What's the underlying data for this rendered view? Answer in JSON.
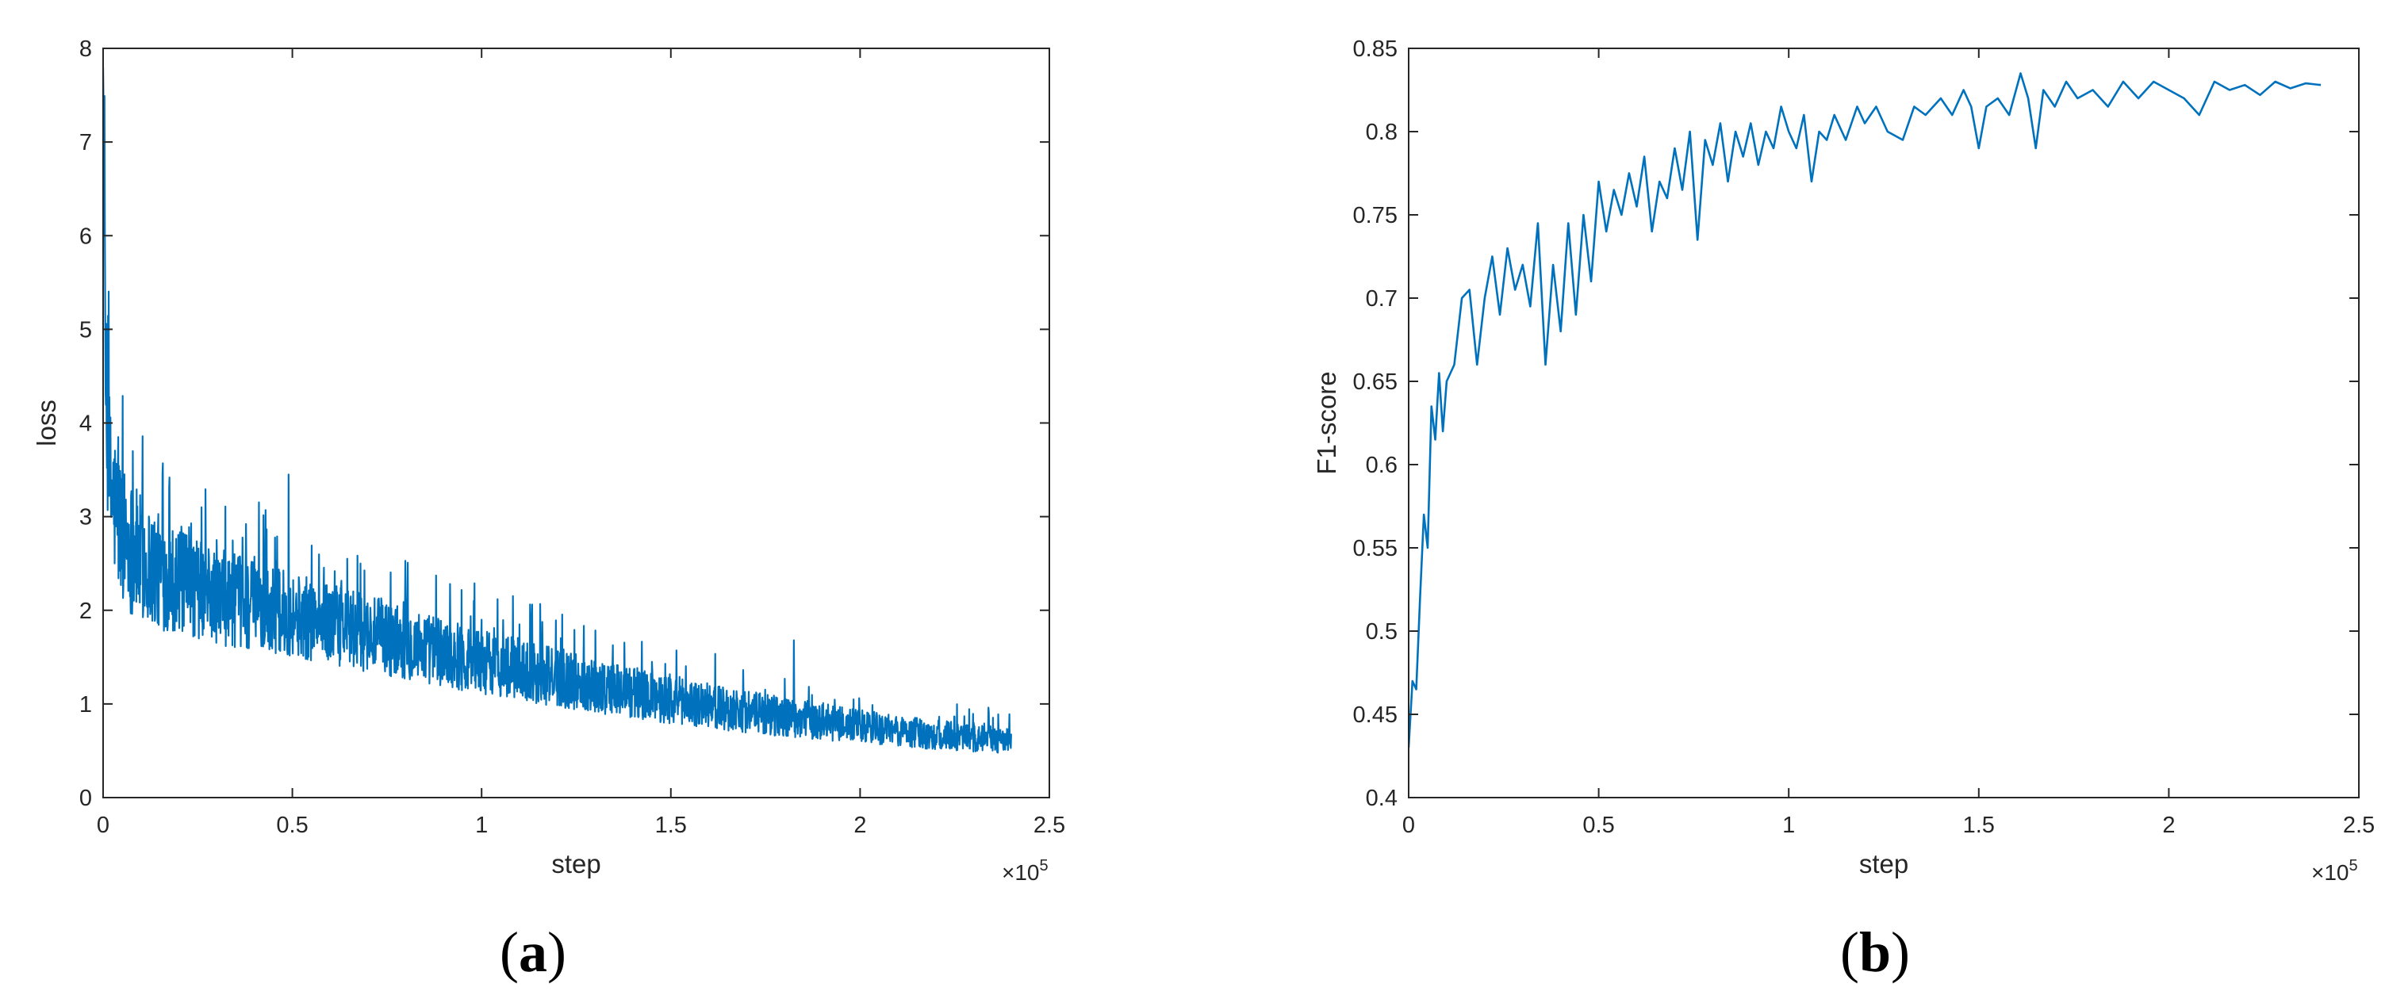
{
  "colors": {
    "line": "#0072BD",
    "axis": "#262626"
  },
  "chart_data": [
    {
      "type": "line",
      "panel_label": "a",
      "xlabel": "step",
      "ylabel": "loss",
      "x_exponent": "10",
      "x_exponent_power": "5",
      "xlim": [
        0,
        2.5
      ],
      "ylim": [
        0,
        8
      ],
      "xticks": [
        0,
        0.5,
        1,
        1.5,
        2,
        2.5
      ],
      "xtick_labels": [
        "0",
        "0.5",
        "1",
        "1.5",
        "2",
        "2.5"
      ],
      "yticks": [
        0,
        1,
        2,
        3,
        4,
        5,
        6,
        7,
        8
      ],
      "ytick_labels": [
        "0",
        "1",
        "2",
        "3",
        "4",
        "5",
        "6",
        "7",
        "8"
      ],
      "grid": false,
      "series": [
        {
          "x_range": [
            0,
            2.4
          ],
          "points": [
            [
              0.0,
              7.8
            ],
            [
              0.003,
              6.0
            ],
            [
              0.006,
              4.6
            ],
            [
              0.01,
              3.9
            ],
            [
              0.02,
              3.3
            ],
            [
              0.04,
              2.95
            ],
            [
              0.07,
              2.7
            ],
            [
              0.1,
              2.55
            ],
            [
              0.15,
              2.4
            ],
            [
              0.2,
              2.3
            ],
            [
              0.3,
              2.15
            ],
            [
              0.4,
              2.05
            ],
            [
              0.5,
              1.95
            ],
            [
              0.6,
              1.85
            ],
            [
              0.7,
              1.75
            ],
            [
              0.8,
              1.65
            ],
            [
              0.9,
              1.55
            ],
            [
              1.0,
              1.45
            ],
            [
              1.1,
              1.37
            ],
            [
              1.2,
              1.28
            ],
            [
              1.3,
              1.2
            ],
            [
              1.4,
              1.12
            ],
            [
              1.5,
              1.05
            ],
            [
              1.6,
              0.98
            ],
            [
              1.7,
              0.92
            ],
            [
              1.8,
              0.86
            ],
            [
              1.9,
              0.81
            ],
            [
              2.0,
              0.76
            ],
            [
              2.1,
              0.71
            ],
            [
              2.2,
              0.67
            ],
            [
              2.3,
              0.63
            ],
            [
              2.4,
              0.6
            ]
          ],
          "band_halfwidth": [
            [
              0.0,
              0.9
            ],
            [
              0.05,
              0.75
            ],
            [
              0.2,
              0.55
            ],
            [
              0.5,
              0.45
            ],
            [
              1.0,
              0.35
            ],
            [
              1.5,
              0.26
            ],
            [
              2.0,
              0.18
            ],
            [
              2.4,
              0.14
            ]
          ],
          "spikes": [
            [
              0.49,
              3.45
            ],
            [
              0.26,
              3.1
            ],
            [
              0.645,
              2.55
            ],
            [
              0.68,
              2.5
            ],
            [
              0.3,
              2.75
            ],
            [
              1.0,
              1.9
            ],
            [
              1.1,
              1.85
            ],
            [
              1.45,
              1.45
            ],
            [
              1.825,
              1.68
            ],
            [
              2.3,
              0.8
            ],
            [
              0.04,
              3.85
            ]
          ]
        }
      ]
    },
    {
      "type": "line",
      "panel_label": "b",
      "xlabel": "step",
      "ylabel": "F1-score",
      "x_exponent": "10",
      "x_exponent_power": "5",
      "xlim": [
        0,
        2.5
      ],
      "ylim": [
        0.4,
        0.85
      ],
      "xticks": [
        0,
        0.5,
        1,
        1.5,
        2,
        2.5
      ],
      "xtick_labels": [
        "0",
        "0.5",
        "1",
        "1.5",
        "2",
        "2.5"
      ],
      "yticks": [
        0.4,
        0.45,
        0.5,
        0.55,
        0.6,
        0.65,
        0.7,
        0.75,
        0.8,
        0.85
      ],
      "ytick_labels": [
        "0.4",
        "0.45",
        "0.5",
        "0.55",
        "0.6",
        "0.65",
        "0.7",
        "0.75",
        "0.8",
        "0.85"
      ],
      "grid": false,
      "series": [
        {
          "x_range": [
            0,
            2.4
          ],
          "points": [
            [
              0.0,
              0.43
            ],
            [
              0.01,
              0.47
            ],
            [
              0.02,
              0.465
            ],
            [
              0.03,
              0.52
            ],
            [
              0.04,
              0.57
            ],
            [
              0.05,
              0.55
            ],
            [
              0.06,
              0.635
            ],
            [
              0.07,
              0.615
            ],
            [
              0.08,
              0.655
            ],
            [
              0.09,
              0.62
            ],
            [
              0.1,
              0.65
            ],
            [
              0.12,
              0.66
            ],
            [
              0.14,
              0.7
            ],
            [
              0.16,
              0.705
            ],
            [
              0.18,
              0.66
            ],
            [
              0.2,
              0.7
            ],
            [
              0.22,
              0.725
            ],
            [
              0.24,
              0.69
            ],
            [
              0.26,
              0.73
            ],
            [
              0.28,
              0.705
            ],
            [
              0.3,
              0.72
            ],
            [
              0.32,
              0.695
            ],
            [
              0.34,
              0.745
            ],
            [
              0.36,
              0.66
            ],
            [
              0.38,
              0.72
            ],
            [
              0.4,
              0.68
            ],
            [
              0.42,
              0.745
            ],
            [
              0.44,
              0.69
            ],
            [
              0.46,
              0.75
            ],
            [
              0.48,
              0.71
            ],
            [
              0.5,
              0.77
            ],
            [
              0.52,
              0.74
            ],
            [
              0.54,
              0.765
            ],
            [
              0.56,
              0.75
            ],
            [
              0.58,
              0.775
            ],
            [
              0.6,
              0.755
            ],
            [
              0.62,
              0.785
            ],
            [
              0.64,
              0.74
            ],
            [
              0.66,
              0.77
            ],
            [
              0.68,
              0.76
            ],
            [
              0.7,
              0.79
            ],
            [
              0.72,
              0.765
            ],
            [
              0.74,
              0.8
            ],
            [
              0.76,
              0.735
            ],
            [
              0.78,
              0.795
            ],
            [
              0.8,
              0.78
            ],
            [
              0.82,
              0.805
            ],
            [
              0.84,
              0.77
            ],
            [
              0.86,
              0.8
            ],
            [
              0.88,
              0.785
            ],
            [
              0.9,
              0.805
            ],
            [
              0.92,
              0.78
            ],
            [
              0.94,
              0.8
            ],
            [
              0.96,
              0.79
            ],
            [
              0.98,
              0.815
            ],
            [
              1.0,
              0.8
            ],
            [
              1.02,
              0.79
            ],
            [
              1.04,
              0.81
            ],
            [
              1.06,
              0.77
            ],
            [
              1.08,
              0.8
            ],
            [
              1.1,
              0.795
            ],
            [
              1.12,
              0.81
            ],
            [
              1.15,
              0.795
            ],
            [
              1.18,
              0.815
            ],
            [
              1.2,
              0.805
            ],
            [
              1.23,
              0.815
            ],
            [
              1.26,
              0.8
            ],
            [
              1.3,
              0.795
            ],
            [
              1.33,
              0.815
            ],
            [
              1.36,
              0.81
            ],
            [
              1.4,
              0.82
            ],
            [
              1.43,
              0.81
            ],
            [
              1.46,
              0.825
            ],
            [
              1.48,
              0.815
            ],
            [
              1.5,
              0.79
            ],
            [
              1.52,
              0.815
            ],
            [
              1.55,
              0.82
            ],
            [
              1.58,
              0.81
            ],
            [
              1.61,
              0.835
            ],
            [
              1.63,
              0.82
            ],
            [
              1.65,
              0.79
            ],
            [
              1.67,
              0.825
            ],
            [
              1.7,
              0.815
            ],
            [
              1.73,
              0.83
            ],
            [
              1.76,
              0.82
            ],
            [
              1.8,
              0.825
            ],
            [
              1.84,
              0.815
            ],
            [
              1.88,
              0.83
            ],
            [
              1.92,
              0.82
            ],
            [
              1.96,
              0.83
            ],
            [
              2.0,
              0.825
            ],
            [
              2.04,
              0.82
            ],
            [
              2.08,
              0.81
            ],
            [
              2.12,
              0.83
            ],
            [
              2.16,
              0.825
            ],
            [
              2.2,
              0.828
            ],
            [
              2.24,
              0.822
            ],
            [
              2.28,
              0.83
            ],
            [
              2.32,
              0.826
            ],
            [
              2.36,
              0.829
            ],
            [
              2.4,
              0.828
            ]
          ]
        }
      ]
    }
  ]
}
